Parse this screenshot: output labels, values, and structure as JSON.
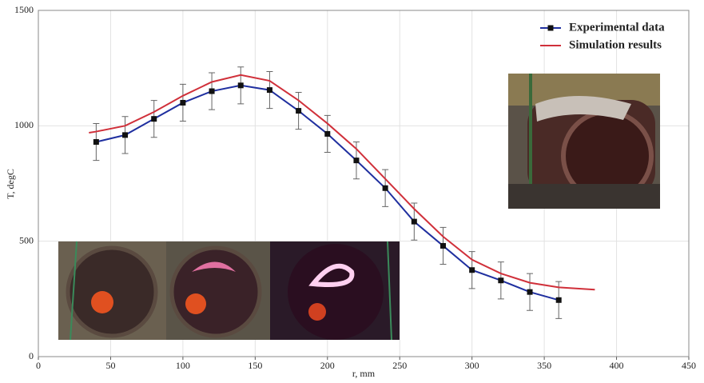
{
  "chart_data": {
    "type": "line",
    "xlabel": "r, mm",
    "ylabel": "T, degC",
    "xlim": [
      0,
      450
    ],
    "xticks": [
      0,
      50,
      100,
      150,
      200,
      250,
      300,
      350,
      400,
      450
    ],
    "ylim": [
      0,
      1500
    ],
    "yticks": [
      0,
      500,
      1000,
      1500
    ],
    "grid": true,
    "legend": "upper right",
    "series": [
      {
        "name": "Experimental data",
        "color": "#1f2f9f",
        "marker_color": "#111111",
        "x": [
          40,
          60,
          80,
          100,
          120,
          140,
          160,
          180,
          200,
          220,
          240,
          260,
          280,
          300,
          320,
          340,
          360
        ],
        "values": [
          930,
          960,
          1030,
          1100,
          1150,
          1175,
          1155,
          1065,
          965,
          850,
          730,
          585,
          480,
          375,
          330,
          280,
          245
        ],
        "errors": [
          80,
          80,
          80,
          80,
          80,
          80,
          80,
          80,
          80,
          80,
          80,
          80,
          80,
          80,
          80,
          80,
          80
        ]
      },
      {
        "name": "Simulation results",
        "color": "#d0303a",
        "x": [
          35,
          40,
          60,
          80,
          100,
          120,
          140,
          160,
          180,
          200,
          220,
          240,
          260,
          280,
          300,
          320,
          340,
          360,
          385
        ],
        "values": [
          970,
          975,
          1000,
          1060,
          1130,
          1190,
          1220,
          1195,
          1110,
          1010,
          900,
          770,
          640,
          520,
          420,
          360,
          320,
          300,
          290
        ]
      }
    ]
  }
}
